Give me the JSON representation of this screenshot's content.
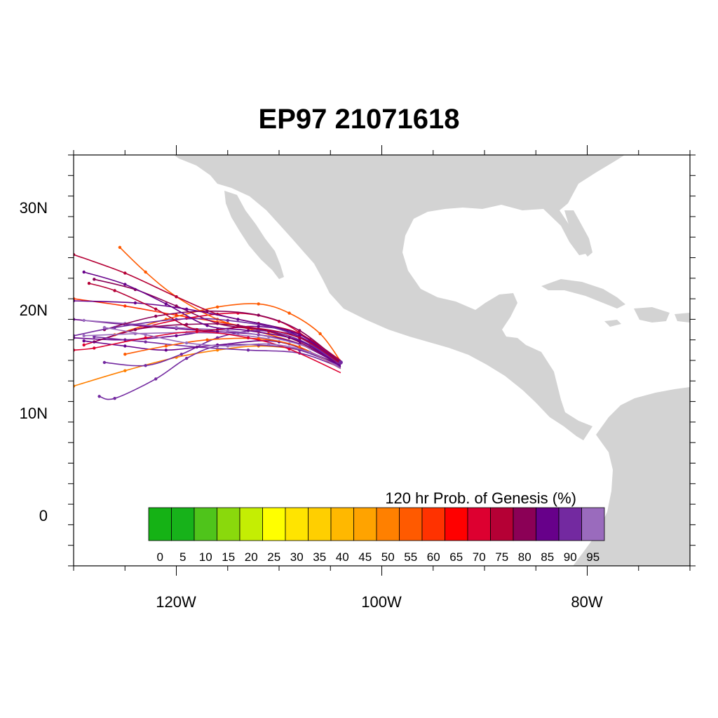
{
  "title": "EP97 21071618",
  "lat_labels": [
    "30N",
    "20N",
    "10N",
    "0"
  ],
  "lon_labels": [
    "120W",
    "100W",
    "80W"
  ],
  "colorbar": {
    "title": "120 hr Prob. of Genesis (%)",
    "labels": [
      "0",
      "5",
      "10",
      "15",
      "20",
      "25",
      "30",
      "35",
      "40",
      "45",
      "50",
      "55",
      "60",
      "65",
      "70",
      "75",
      "80",
      "85",
      "90",
      "95"
    ],
    "colors": [
      "#15b215",
      "#17b21a",
      "#4fc41b",
      "#8ad90c",
      "#c4ee03",
      "#ffff00",
      "#ffe400",
      "#ffcf00",
      "#ffb800",
      "#ffa300",
      "#ff8000",
      "#ff5a00",
      "#ff3200",
      "#ff0000",
      "#dd0030",
      "#b50035",
      "#8b0056",
      "#67008a",
      "#7329a0",
      "#9a6bbd"
    ]
  },
  "map_colors": {
    "land": "#d3d3d3",
    "ocean": "#ffffff"
  },
  "chart_data": {
    "type": "map",
    "extent": {
      "lon": [
        -130,
        -70
      ],
      "lat": [
        -5,
        35
      ]
    },
    "genesis_location": {
      "lon": -104,
      "lat": 14.8
    },
    "tracks": [
      {
        "prob": 65,
        "color": "#ff3200",
        "points": [
          [
            -104,
            14.6
          ],
          [
            -107,
            16.5
          ],
          [
            -111,
            17.8
          ],
          [
            -115,
            18.6
          ],
          [
            -120,
            19.4
          ],
          [
            -125,
            20.3
          ],
          [
            -130,
            21.0
          ]
        ]
      },
      {
        "prob": 70,
        "color": "#dd0030",
        "points": [
          [
            -104,
            14.8
          ],
          [
            -107,
            17.0
          ],
          [
            -110,
            18.8
          ],
          [
            -114,
            19.6
          ],
          [
            -119,
            19.1
          ],
          [
            -124,
            18.0
          ],
          [
            -129,
            16.5
          ]
        ]
      },
      {
        "prob": 60,
        "color": "#ff5a00",
        "points": [
          [
            -104,
            14.9
          ],
          [
            -106,
            17.6
          ],
          [
            -109,
            19.6
          ],
          [
            -112,
            20.5
          ],
          [
            -116,
            20.2
          ],
          [
            -121,
            19.0
          ],
          [
            -126,
            17.5
          ]
        ]
      },
      {
        "prob": 50,
        "color": "#ff8000",
        "points": [
          [
            -104,
            14.6
          ],
          [
            -108,
            16.0
          ],
          [
            -112,
            16.4
          ],
          [
            -116,
            16.0
          ],
          [
            -120,
            15.3
          ],
          [
            -125,
            14.0
          ],
          [
            -130,
            12.5
          ]
        ]
      },
      {
        "prob": 55,
        "color": "#ff5a00",
        "points": [
          [
            -104,
            14.7
          ],
          [
            -108,
            16.6
          ],
          [
            -112,
            17.8
          ],
          [
            -116,
            19.0
          ],
          [
            -120,
            21.2
          ],
          [
            -123,
            23.6
          ],
          [
            -125.5,
            26.0
          ]
        ]
      },
      {
        "prob": 75,
        "color": "#b50035",
        "points": [
          [
            -104,
            15.0
          ],
          [
            -108,
            17.6
          ],
          [
            -112,
            18.6
          ],
          [
            -116,
            19.5
          ],
          [
            -120,
            21.2
          ],
          [
            -125,
            23.5
          ],
          [
            -130,
            25.3
          ]
        ]
      },
      {
        "prob": 80,
        "color": "#8b0056",
        "points": [
          [
            -104,
            14.8
          ],
          [
            -108,
            17.3
          ],
          [
            -112,
            18.0
          ],
          [
            -116,
            18.6
          ],
          [
            -120,
            20.3
          ],
          [
            -124,
            21.9
          ],
          [
            -128,
            22.9
          ]
        ]
      },
      {
        "prob": 85,
        "color": "#67008a",
        "points": [
          [
            -104,
            14.5
          ],
          [
            -108,
            16.6
          ],
          [
            -112,
            17.5
          ],
          [
            -116,
            17.8
          ],
          [
            -120,
            18.1
          ],
          [
            -125,
            18.5
          ],
          [
            -130,
            19.0
          ]
        ]
      },
      {
        "prob": 90,
        "color": "#7329a0",
        "points": [
          [
            -104,
            14.4
          ],
          [
            -108,
            16.0
          ],
          [
            -112,
            16.5
          ],
          [
            -116,
            16.4
          ],
          [
            -119,
            15.2
          ],
          [
            -122,
            13.2
          ],
          [
            -126,
            11.3
          ],
          [
            -127.5,
            11.5
          ]
        ]
      },
      {
        "prob": 85,
        "color": "#67008a",
        "points": [
          [
            -104,
            14.7
          ],
          [
            -108,
            17.5
          ],
          [
            -112,
            18.3
          ],
          [
            -116,
            18.0
          ],
          [
            -120,
            17.4
          ],
          [
            -125,
            17.0
          ],
          [
            -130,
            17.2
          ]
        ]
      },
      {
        "prob": 90,
        "color": "#7329a0",
        "points": [
          [
            -104,
            14.6
          ],
          [
            -108,
            17.0
          ],
          [
            -112,
            17.9
          ],
          [
            -116,
            17.2
          ],
          [
            -119.5,
            15.6
          ],
          [
            -123,
            14.5
          ],
          [
            -127,
            14.8
          ]
        ]
      },
      {
        "prob": 95,
        "color": "#9a6bbd",
        "points": [
          [
            -104,
            14.5
          ],
          [
            -107,
            16.2
          ],
          [
            -111,
            17.3
          ],
          [
            -115,
            17.9
          ],
          [
            -120,
            18.2
          ],
          [
            -125,
            18.6
          ],
          [
            -129,
            18.9
          ]
        ]
      },
      {
        "prob": 80,
        "color": "#8b0056",
        "points": [
          [
            -104,
            14.6
          ],
          [
            -109,
            17.2
          ],
          [
            -114,
            18.4
          ],
          [
            -119,
            18.5
          ],
          [
            -124,
            18.0
          ],
          [
            -128,
            16.8
          ]
        ]
      },
      {
        "prob": 85,
        "color": "#67008a",
        "points": [
          [
            -104,
            14.9
          ],
          [
            -109,
            17.8
          ],
          [
            -114,
            19.0
          ],
          [
            -119,
            20.0
          ],
          [
            -124,
            20.6
          ],
          [
            -130,
            20.8
          ]
        ]
      },
      {
        "prob": 90,
        "color": "#7329a0",
        "points": [
          [
            -104,
            14.3
          ],
          [
            -108,
            15.7
          ],
          [
            -113,
            16.0
          ],
          [
            -118,
            16.3
          ],
          [
            -123,
            16.8
          ],
          [
            -128,
            17.3
          ]
        ]
      },
      {
        "prob": 95,
        "color": "#9a6bbd",
        "points": [
          [
            -104,
            14.4
          ],
          [
            -109,
            16.6
          ],
          [
            -114,
            17.5
          ],
          [
            -119,
            17.7
          ],
          [
            -124,
            17.6
          ],
          [
            -129,
            17.4
          ]
        ]
      },
      {
        "prob": 85,
        "color": "#67008a",
        "points": [
          [
            -104,
            14.5
          ],
          [
            -110,
            16.8
          ],
          [
            -116,
            16.5
          ],
          [
            -121,
            16.0
          ],
          [
            -125,
            16.4
          ],
          [
            -129,
            16.9
          ]
        ]
      },
      {
        "prob": 80,
        "color": "#8b0056",
        "points": [
          [
            -104,
            14.8
          ],
          [
            -108,
            17.9
          ],
          [
            -112,
            19.4
          ],
          [
            -117,
            19.8
          ],
          [
            -122,
            19.3
          ],
          [
            -127,
            18.0
          ]
        ]
      },
      {
        "prob": 60,
        "color": "#ff5a00",
        "points": [
          [
            -104,
            14.2
          ],
          [
            -108,
            16.3
          ],
          [
            -112,
            17.1
          ],
          [
            -117,
            17.0
          ],
          [
            -121,
            16.4
          ],
          [
            -125,
            15.6
          ]
        ]
      },
      {
        "prob": 70,
        "color": "#dd0030",
        "points": [
          [
            -104,
            13.8
          ],
          [
            -109,
            16.1
          ],
          [
            -113,
            17.2
          ],
          [
            -118,
            17.8
          ],
          [
            -123,
            17.2
          ],
          [
            -128,
            16.2
          ],
          [
            -130,
            16.0
          ]
        ]
      },
      {
        "prob": 90,
        "color": "#7329a0",
        "points": [
          [
            -104,
            14.6
          ],
          [
            -109,
            17.7
          ],
          [
            -115,
            18.9
          ],
          [
            -120,
            19.0
          ],
          [
            -126,
            18.2
          ],
          [
            -130,
            17.4
          ]
        ]
      },
      {
        "prob": 75,
        "color": "#b50035",
        "points": [
          [
            -104,
            14.7
          ],
          [
            -108,
            17.2
          ],
          [
            -113,
            18.2
          ],
          [
            -118,
            18.0
          ],
          [
            -122,
            20.0
          ],
          [
            -126,
            21.8
          ],
          [
            -128.5,
            22.5
          ]
        ]
      },
      {
        "prob": 85,
        "color": "#67008a",
        "points": [
          [
            -104,
            14.4
          ],
          [
            -108,
            16.9
          ],
          [
            -113,
            17.9
          ],
          [
            -117,
            18.4
          ],
          [
            -121,
            20.5
          ],
          [
            -125,
            22.4
          ],
          [
            -129,
            23.6
          ]
        ]
      },
      {
        "prob": 95,
        "color": "#9a6bbd",
        "points": [
          [
            -104,
            14.2
          ],
          [
            -107,
            15.8
          ],
          [
            -111,
            16.6
          ],
          [
            -115,
            16.4
          ],
          [
            -119,
            16.7
          ],
          [
            -123,
            17.5
          ],
          [
            -127,
            18.2
          ]
        ]
      }
    ]
  }
}
